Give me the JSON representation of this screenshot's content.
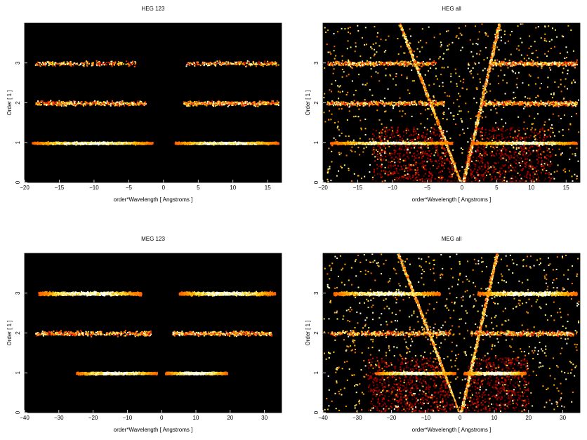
{
  "chart_data": [
    {
      "type": "heatmap",
      "title": "HEG 123",
      "xlabel": "order*Wavelength [ Angstroms ]",
      "ylabel": "Order [ 1 ]",
      "xlim": [
        -20,
        17
      ],
      "ylim": [
        0,
        4
      ],
      "xticks": [
        -20,
        -15,
        -10,
        -5,
        0,
        5,
        10,
        15
      ],
      "yticks": [
        0,
        1,
        2,
        3
      ],
      "colormap": "black-red-orange-yellow-white",
      "bands": [
        {
          "order": 1,
          "x_ranges": [
            [
              -19.0,
              -1.6
            ],
            [
              1.6,
              16.5
            ]
          ],
          "intensity": "high"
        },
        {
          "order": 2,
          "x_ranges": [
            [
              -18.5,
              -2.6
            ],
            [
              2.8,
              16.5
            ]
          ],
          "intensity": "medium"
        },
        {
          "order": 3,
          "x_ranges": [
            [
              -18.5,
              -4.0
            ],
            [
              3.2,
              16.5
            ]
          ],
          "intensity": "low"
        }
      ],
      "wedge": false
    },
    {
      "type": "heatmap",
      "title": "HEG all",
      "xlabel": "order*Wavelength [ Angstroms ]",
      "ylabel": "Order [ 1 ]",
      "xlim": [
        -20,
        17
      ],
      "ylim": [
        0,
        4
      ],
      "xticks": [
        -20,
        -15,
        -10,
        -5,
        0,
        5,
        10,
        15
      ],
      "yticks": [
        0,
        1,
        2,
        3
      ],
      "colormap": "black-red-orange-yellow-white",
      "bands": [
        {
          "order": 1,
          "x_ranges": [
            [
              -19.0,
              -1.4
            ],
            [
              1.4,
              16.5
            ]
          ],
          "intensity": "high"
        },
        {
          "order": 2,
          "x_ranges": [
            [
              -19.5,
              -2.6
            ],
            [
              2.6,
              16.5
            ]
          ],
          "intensity": "medium"
        },
        {
          "order": 3,
          "x_ranges": [
            [
              -19.5,
              -3.8
            ],
            [
              3.8,
              16.5
            ]
          ],
          "intensity": "medium"
        }
      ],
      "wedge": true,
      "background_region": {
        "x": [
          -13,
          13
        ],
        "y": [
          0,
          1.4
        ]
      }
    },
    {
      "type": "heatmap",
      "title": "MEG 123",
      "xlabel": "order*Wavelength [ Angstroms ]",
      "ylabel": "Order [ 1 ]",
      "xlim": [
        -40,
        35
      ],
      "ylim": [
        0,
        4
      ],
      "xticks": [
        -40,
        -30,
        -20,
        -10,
        0,
        10,
        20,
        30
      ],
      "yticks": [
        0,
        1,
        2,
        3
      ],
      "colormap": "black-red-orange-yellow-white",
      "bands": [
        {
          "order": 1,
          "x_ranges": [
            [
              -25.0,
              -1.5
            ],
            [
              1.0,
              19.0
            ]
          ],
          "intensity": "high"
        },
        {
          "order": 2,
          "x_ranges": [
            [
              -37.0,
              -3.0
            ],
            [
              3.0,
              32.0
            ]
          ],
          "intensity": "medium"
        },
        {
          "order": 3,
          "x_ranges": [
            [
              -36.0,
              -6.0
            ],
            [
              5.0,
              33.0
            ]
          ],
          "intensity": "high"
        }
      ],
      "wedge": false
    },
    {
      "type": "heatmap",
      "title": "MEG all",
      "xlabel": "order*Wavelength [ Angstroms ]",
      "ylabel": "Order [ 1 ]",
      "xlim": [
        -40,
        35
      ],
      "ylim": [
        0,
        4
      ],
      "xticks": [
        -40,
        -30,
        -20,
        -10,
        0,
        10,
        20,
        30
      ],
      "yticks": [
        0,
        1,
        2,
        3
      ],
      "colormap": "black-red-orange-yellow-white",
      "bands": [
        {
          "order": 1,
          "x_ranges": [
            [
              -25.0,
              -1.5
            ],
            [
              1.0,
              19.0
            ]
          ],
          "intensity": "high"
        },
        {
          "order": 2,
          "x_ranges": [
            [
              -38.0,
              -3.0
            ],
            [
              3.0,
              33.0
            ]
          ],
          "intensity": "medium"
        },
        {
          "order": 3,
          "x_ranges": [
            [
              -37.0,
              -6.0
            ],
            [
              5.0,
              34.0
            ]
          ],
          "intensity": "high"
        }
      ],
      "wedge": true,
      "background_region": {
        "x": [
          -27,
          20
        ],
        "y": [
          0,
          1.4
        ]
      }
    }
  ]
}
